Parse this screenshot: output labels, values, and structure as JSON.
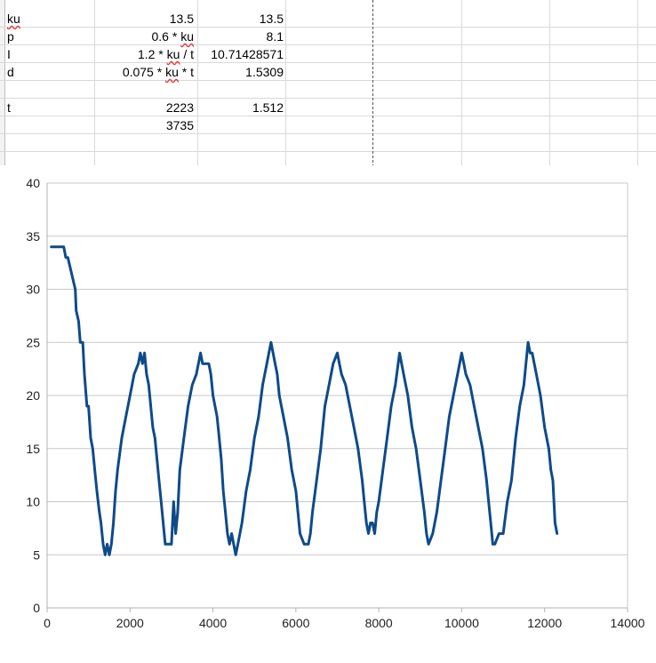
{
  "cells": [
    {
      "label": "ku",
      "formula_parts": [
        "13.5"
      ],
      "value": "13.5"
    },
    {
      "label": "p",
      "formula_parts": [
        "0.6 * ",
        "ku"
      ],
      "value": "8.1"
    },
    {
      "label": "I",
      "formula_parts": [
        "1.2 * ",
        "ku",
        " / t"
      ],
      "value": "10.71428571"
    },
    {
      "label": "d",
      "formula_parts": [
        "0.075 * ",
        "ku",
        " * t"
      ],
      "value": "1.5309"
    },
    {
      "label": "t",
      "b": "2223",
      "c": "1.512"
    },
    {
      "b": "3735"
    }
  ],
  "chart_data": {
    "type": "line",
    "title": "",
    "xlabel": "",
    "ylabel": "",
    "xlim": [
      0,
      14000
    ],
    "ylim": [
      0,
      40
    ],
    "x_ticks": [
      0,
      2000,
      4000,
      6000,
      8000,
      10000,
      12000,
      14000
    ],
    "y_ticks": [
      0,
      5,
      10,
      15,
      20,
      25,
      30,
      35,
      40
    ],
    "grid": "horizontal",
    "legend": "none",
    "series": [
      {
        "color": "#0e4a8a",
        "points": [
          [
            100,
            34
          ],
          [
            400,
            34
          ],
          [
            450,
            33
          ],
          [
            500,
            33
          ],
          [
            560,
            32
          ],
          [
            620,
            31
          ],
          [
            680,
            30
          ],
          [
            700,
            28
          ],
          [
            760,
            27
          ],
          [
            800,
            25
          ],
          [
            860,
            25
          ],
          [
            900,
            22
          ],
          [
            960,
            19
          ],
          [
            1000,
            19
          ],
          [
            1050,
            16
          ],
          [
            1100,
            15
          ],
          [
            1150,
            13
          ],
          [
            1200,
            11
          ],
          [
            1260,
            9
          ],
          [
            1300,
            8
          ],
          [
            1350,
            6
          ],
          [
            1400,
            5
          ],
          [
            1450,
            6
          ],
          [
            1500,
            5
          ],
          [
            1550,
            6
          ],
          [
            1600,
            8
          ],
          [
            1650,
            11
          ],
          [
            1700,
            13
          ],
          [
            1800,
            16
          ],
          [
            1900,
            18
          ],
          [
            2000,
            20
          ],
          [
            2100,
            22
          ],
          [
            2200,
            23
          ],
          [
            2250,
            24
          ],
          [
            2300,
            23
          ],
          [
            2350,
            24
          ],
          [
            2400,
            22
          ],
          [
            2450,
            21
          ],
          [
            2500,
            19
          ],
          [
            2550,
            17
          ],
          [
            2600,
            16
          ],
          [
            2650,
            14
          ],
          [
            2700,
            12
          ],
          [
            2750,
            10
          ],
          [
            2800,
            8
          ],
          [
            2850,
            6
          ],
          [
            2900,
            6
          ],
          [
            3000,
            6
          ],
          [
            3050,
            10
          ],
          [
            3100,
            7
          ],
          [
            3150,
            9
          ],
          [
            3200,
            13
          ],
          [
            3300,
            16
          ],
          [
            3400,
            19
          ],
          [
            3500,
            21
          ],
          [
            3600,
            22
          ],
          [
            3700,
            24
          ],
          [
            3750,
            23
          ],
          [
            3800,
            23
          ],
          [
            3900,
            23
          ],
          [
            3950,
            22
          ],
          [
            4000,
            20
          ],
          [
            4100,
            18
          ],
          [
            4150,
            16
          ],
          [
            4200,
            14
          ],
          [
            4250,
            11
          ],
          [
            4300,
            9
          ],
          [
            4350,
            7
          ],
          [
            4400,
            6
          ],
          [
            4450,
            7
          ],
          [
            4500,
            6
          ],
          [
            4550,
            5
          ],
          [
            4600,
            6
          ],
          [
            4650,
            7
          ],
          [
            4700,
            8
          ],
          [
            4800,
            11
          ],
          [
            4900,
            13
          ],
          [
            5000,
            16
          ],
          [
            5100,
            18
          ],
          [
            5200,
            21
          ],
          [
            5300,
            23
          ],
          [
            5350,
            24
          ],
          [
            5400,
            25
          ],
          [
            5450,
            24
          ],
          [
            5500,
            23
          ],
          [
            5550,
            22
          ],
          [
            5600,
            20
          ],
          [
            5700,
            18
          ],
          [
            5800,
            16
          ],
          [
            5900,
            13
          ],
          [
            6000,
            11
          ],
          [
            6050,
            9
          ],
          [
            6100,
            7
          ],
          [
            6200,
            6
          ],
          [
            6300,
            6
          ],
          [
            6350,
            7
          ],
          [
            6400,
            9
          ],
          [
            6500,
            12
          ],
          [
            6600,
            15
          ],
          [
            6700,
            19
          ],
          [
            6800,
            21
          ],
          [
            6900,
            23
          ],
          [
            7000,
            24
          ],
          [
            7050,
            23
          ],
          [
            7100,
            22
          ],
          [
            7200,
            21
          ],
          [
            7300,
            19
          ],
          [
            7400,
            17
          ],
          [
            7500,
            15
          ],
          [
            7600,
            12
          ],
          [
            7650,
            10
          ],
          [
            7700,
            8
          ],
          [
            7750,
            7
          ],
          [
            7800,
            8
          ],
          [
            7850,
            8
          ],
          [
            7900,
            7
          ],
          [
            7950,
            9
          ],
          [
            8000,
            10
          ],
          [
            8100,
            13
          ],
          [
            8200,
            16
          ],
          [
            8300,
            19
          ],
          [
            8400,
            21
          ],
          [
            8500,
            24
          ],
          [
            8550,
            23
          ],
          [
            8600,
            22
          ],
          [
            8700,
            20
          ],
          [
            8800,
            17
          ],
          [
            8900,
            15
          ],
          [
            9000,
            12
          ],
          [
            9100,
            9
          ],
          [
            9150,
            7
          ],
          [
            9200,
            6
          ],
          [
            9300,
            7
          ],
          [
            9400,
            9
          ],
          [
            9500,
            12
          ],
          [
            9600,
            15
          ],
          [
            9700,
            18
          ],
          [
            9800,
            20
          ],
          [
            9900,
            22
          ],
          [
            10000,
            24
          ],
          [
            10050,
            23
          ],
          [
            10100,
            22
          ],
          [
            10200,
            21
          ],
          [
            10300,
            19
          ],
          [
            10400,
            17
          ],
          [
            10500,
            15
          ],
          [
            10600,
            12
          ],
          [
            10650,
            10
          ],
          [
            10700,
            8
          ],
          [
            10750,
            6
          ],
          [
            10800,
            6
          ],
          [
            10900,
            7
          ],
          [
            11000,
            7
          ],
          [
            11100,
            10
          ],
          [
            11200,
            12
          ],
          [
            11300,
            16
          ],
          [
            11400,
            19
          ],
          [
            11500,
            21
          ],
          [
            11550,
            23
          ],
          [
            11600,
            25
          ],
          [
            11650,
            24
          ],
          [
            11700,
            24
          ],
          [
            11800,
            22
          ],
          [
            11850,
            21
          ],
          [
            11900,
            20
          ],
          [
            12000,
            17
          ],
          [
            12100,
            15
          ],
          [
            12150,
            13
          ],
          [
            12200,
            12
          ],
          [
            12250,
            8
          ],
          [
            12300,
            7
          ]
        ]
      }
    ]
  }
}
